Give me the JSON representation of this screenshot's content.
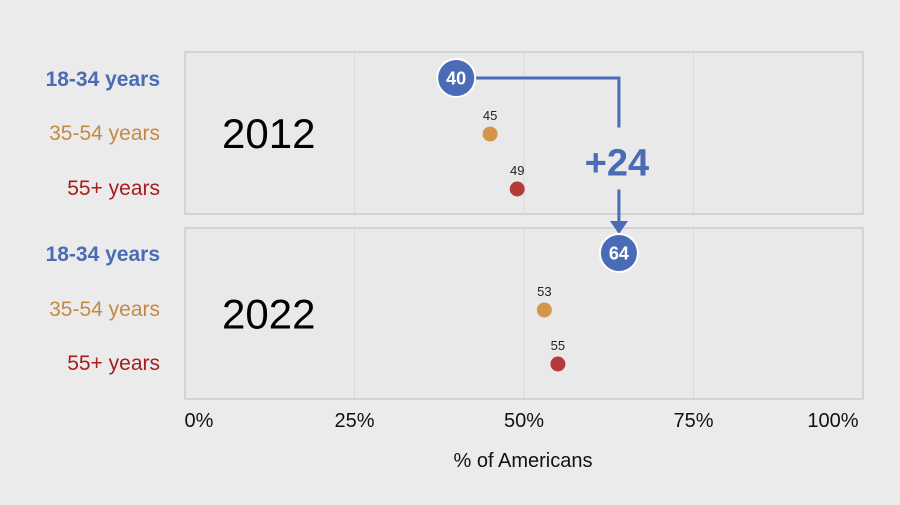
{
  "colors": {
    "young": "#4a6bb5",
    "middle": "#d2954a",
    "older": "#b53a3a",
    "middle_text": "#c48a45",
    "older_text": "#a71d1d"
  },
  "chart_data": {
    "type": "scatter",
    "xlabel": "% of Americans",
    "xlim": [
      0,
      100
    ],
    "x_ticks": [
      "0%",
      "25%",
      "50%",
      "75%",
      "100%"
    ],
    "x_tick_values": [
      0,
      25,
      50,
      75,
      100
    ],
    "categories": [
      "18-34 years",
      "35-54 years",
      "55+ years"
    ],
    "panels": [
      {
        "year": "2012",
        "points": [
          {
            "group": "18-34 years",
            "value": 40,
            "label": "40"
          },
          {
            "group": "35-54 years",
            "value": 45,
            "label": "45"
          },
          {
            "group": "55+ years",
            "value": 49,
            "label": "49"
          }
        ]
      },
      {
        "year": "2022",
        "points": [
          {
            "group": "18-34 years",
            "value": 64,
            "label": "64"
          },
          {
            "group": "35-54 years",
            "value": 53,
            "label": "53"
          },
          {
            "group": "55+ years",
            "value": 55,
            "label": "55"
          }
        ]
      }
    ],
    "annotation": {
      "text": "+24",
      "from": 40,
      "to": 64,
      "group": "18-34 years"
    }
  }
}
